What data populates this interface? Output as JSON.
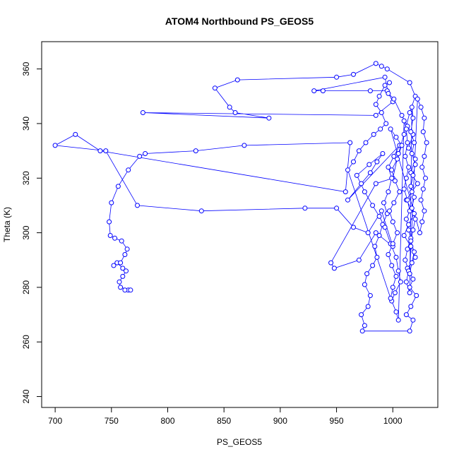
{
  "chart_data": {
    "type": "scatter",
    "title": "ATOM4 Northbound PS_GEOS5",
    "xlabel": "PS_GEOS5",
    "ylabel": "Theta (K)",
    "xlim": [
      688,
      1040
    ],
    "ylim": [
      236,
      370
    ],
    "xticks": [
      700,
      750,
      800,
      850,
      900,
      950,
      1000
    ],
    "yticks": [
      240,
      260,
      280,
      300,
      320,
      340,
      360
    ],
    "grid": false,
    "legend": "none",
    "colors": {
      "series": "#0000ff",
      "axes": "#000000"
    },
    "series": [
      {
        "style": "points-connected",
        "points": [
          [
            765,
            279
          ],
          [
            762,
            279
          ],
          [
            767,
            279
          ],
          [
            758,
            280
          ],
          [
            757,
            282
          ],
          [
            760,
            284
          ],
          [
            763,
            286
          ],
          [
            760,
            287
          ],
          [
            755,
            289
          ],
          [
            752,
            288
          ],
          [
            758,
            289
          ],
          [
            762,
            292
          ],
          [
            764,
            294
          ],
          [
            759,
            297
          ],
          [
            753,
            298
          ],
          [
            749,
            299
          ],
          [
            748,
            304
          ],
          [
            750,
            311
          ],
          [
            756,
            317
          ],
          [
            765,
            323
          ],
          [
            775,
            328
          ],
          [
            780,
            329
          ],
          [
            825,
            330
          ],
          [
            868,
            332
          ],
          [
            962,
            333
          ],
          [
            958,
            315
          ],
          [
            740,
            330
          ],
          [
            718,
            336
          ],
          [
            700,
            332
          ],
          [
            745,
            330
          ],
          [
            773,
            310
          ],
          [
            830,
            308
          ],
          [
            922,
            309
          ],
          [
            950,
            309
          ],
          [
            965,
            302
          ],
          [
            978,
            300
          ],
          [
            990,
            308
          ],
          [
            1000,
            295
          ],
          [
            985,
            300
          ],
          [
            970,
            290
          ],
          [
            948,
            287
          ],
          [
            945,
            289
          ],
          [
            985,
            318
          ],
          [
            1000,
            320
          ],
          [
            1005,
            329
          ],
          [
            1010,
            336
          ],
          [
            1015,
            344
          ],
          [
            1020,
            350
          ],
          [
            1015,
            355
          ],
          [
            995,
            360
          ],
          [
            990,
            361
          ],
          [
            985,
            362
          ],
          [
            965,
            358
          ],
          [
            950,
            357
          ],
          [
            862,
            356
          ],
          [
            842,
            353
          ],
          [
            855,
            346
          ],
          [
            860,
            344
          ],
          [
            890,
            342
          ],
          [
            778,
            344
          ],
          [
            985,
            343
          ],
          [
            1000,
            348
          ],
          [
            995,
            352
          ],
          [
            980,
            352
          ],
          [
            938,
            352
          ],
          [
            930,
            352
          ],
          [
            993,
            357
          ],
          [
            996,
            351
          ],
          [
            1001,
            349
          ],
          [
            1008,
            343
          ],
          [
            1013,
            339
          ],
          [
            1018,
            336
          ],
          [
            1014,
            331
          ],
          [
            1020,
            327
          ],
          [
            1016,
            322
          ],
          [
            1022,
            318
          ],
          [
            1017,
            315
          ],
          [
            1012,
            312
          ],
          [
            1019,
            307
          ],
          [
            1014,
            303
          ],
          [
            1010,
            299
          ],
          [
            1016,
            295
          ],
          [
            1020,
            291
          ],
          [
            1013,
            287
          ],
          [
            1018,
            283
          ],
          [
            1015,
            280
          ],
          [
            1021,
            277
          ],
          [
            1016,
            273
          ],
          [
            1012,
            270
          ],
          [
            1018,
            268
          ],
          [
            1015,
            264
          ],
          [
            973,
            264
          ],
          [
            975,
            266
          ],
          [
            972,
            270
          ],
          [
            978,
            273
          ],
          [
            980,
            277
          ],
          [
            975,
            281
          ],
          [
            977,
            285
          ],
          [
            982,
            288
          ],
          [
            986,
            291
          ],
          [
            984,
            295
          ],
          [
            988,
            299
          ],
          [
            991,
            303
          ],
          [
            995,
            307
          ],
          [
            992,
            311
          ],
          [
            996,
            315
          ],
          [
            999,
            320
          ],
          [
            996,
            324
          ],
          [
            1001,
            328
          ],
          [
            1006,
            332
          ],
          [
            960,
            312
          ],
          [
            972,
            318
          ],
          [
            980,
            322
          ],
          [
            986,
            326
          ],
          [
            991,
            329
          ],
          [
            979,
            325
          ],
          [
            968,
            321
          ],
          [
            975,
            315
          ],
          [
            982,
            310
          ],
          [
            988,
            306
          ],
          [
            993,
            302
          ],
          [
            998,
            296
          ],
          [
            1003,
            291
          ],
          [
            1005,
            286
          ],
          [
            1007,
            282
          ],
          [
            1002,
            278
          ],
          [
            999,
            275
          ],
          [
            1003,
            271
          ],
          [
            1005,
            268
          ],
          [
            1010,
            341
          ],
          [
            1012,
            338
          ],
          [
            1013,
            333
          ],
          [
            1011,
            328
          ],
          [
            1014,
            324
          ],
          [
            1012,
            320
          ],
          [
            1010,
            316
          ],
          [
            1013,
            312
          ],
          [
            1015,
            308
          ],
          [
            1012,
            305
          ],
          [
            1014,
            301
          ],
          [
            1016,
            298
          ],
          [
            1013,
            294
          ],
          [
            1011,
            290
          ],
          [
            1014,
            286
          ],
          [
            1012,
            282
          ],
          [
            1015,
            278
          ],
          [
            1017,
            346
          ],
          [
            1018,
            342
          ],
          [
            1016,
            337
          ],
          [
            1019,
            333
          ],
          [
            1017,
            329
          ],
          [
            1020,
            325
          ],
          [
            1018,
            321
          ],
          [
            1016,
            317
          ],
          [
            1019,
            313
          ],
          [
            1017,
            309
          ],
          [
            1020,
            305
          ],
          [
            1018,
            301
          ],
          [
            1016,
            297
          ],
          [
            1019,
            293
          ],
          [
            1017,
            289
          ],
          [
            1015,
            285
          ],
          [
            1022,
            349
          ],
          [
            1025,
            346
          ],
          [
            1028,
            342
          ],
          [
            1027,
            337
          ],
          [
            1030,
            333
          ],
          [
            1028,
            328
          ],
          [
            1026,
            324
          ],
          [
            1029,
            320
          ],
          [
            1027,
            316
          ],
          [
            1025,
            312
          ],
          [
            1028,
            308
          ],
          [
            1026,
            304
          ],
          [
            1024,
            300
          ],
          [
            998,
            338
          ],
          [
            1003,
            335
          ],
          [
            1008,
            332
          ],
          [
            1004,
            327
          ],
          [
            999,
            323
          ],
          [
            1002,
            319
          ],
          [
            1006,
            315
          ],
          [
            1001,
            311
          ],
          [
            997,
            308
          ],
          [
            1000,
            304
          ],
          [
            1004,
            300
          ],
          [
            1000,
            296
          ],
          [
            996,
            292
          ],
          [
            999,
            288
          ],
          [
            1003,
            284
          ],
          [
            1000,
            280
          ],
          [
            998,
            276
          ],
          [
            960,
            323
          ],
          [
            965,
            326
          ],
          [
            970,
            330
          ],
          [
            976,
            333
          ],
          [
            983,
            336
          ],
          [
            989,
            338
          ],
          [
            994,
            340
          ],
          [
            990,
            344
          ],
          [
            985,
            347
          ],
          [
            988,
            350
          ],
          [
            993,
            354
          ],
          [
            997,
            355
          ]
        ]
      }
    ]
  }
}
